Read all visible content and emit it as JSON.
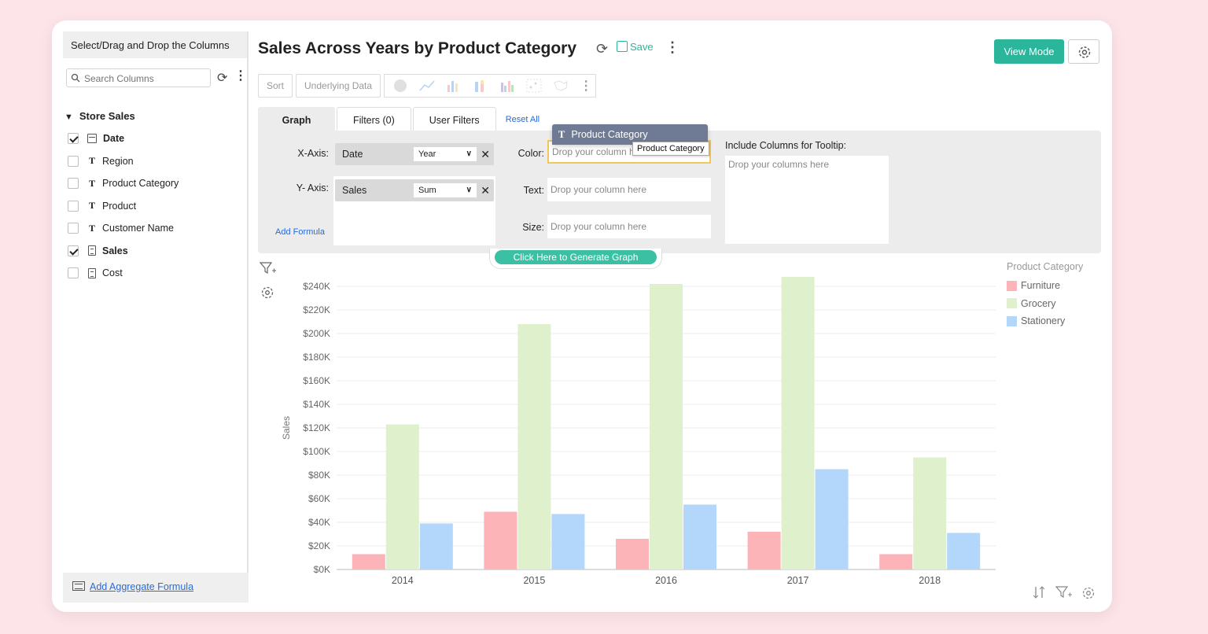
{
  "sidebar": {
    "header": "Select/Drag and Drop the Columns",
    "search_placeholder": "Search Columns",
    "tree_title": "Store Sales",
    "columns": [
      {
        "label": "Date",
        "checked": true,
        "type": "date"
      },
      {
        "label": "Region",
        "checked": false,
        "type": "text"
      },
      {
        "label": "Product Category",
        "checked": false,
        "type": "text"
      },
      {
        "label": "Product",
        "checked": false,
        "type": "text"
      },
      {
        "label": "Customer Name",
        "checked": false,
        "type": "text"
      },
      {
        "label": "Sales",
        "checked": true,
        "type": "number"
      },
      {
        "label": "Cost",
        "checked": false,
        "type": "number"
      }
    ],
    "footer_link": "Add Aggregate Formula"
  },
  "header": {
    "title": "Sales Across Years by Product Category",
    "save_label": "Save",
    "view_mode_label": "View Mode"
  },
  "toolbar": {
    "sort_label": "Sort",
    "underlying_label": "Underlying Data"
  },
  "tabs": [
    {
      "label": "Graph",
      "active": true
    },
    {
      "label": "Filters (0)",
      "active": false
    },
    {
      "label": "User Filters",
      "active": false
    }
  ],
  "reset_all": "Reset All",
  "config": {
    "x_axis_label": "X-Axis:",
    "x_axis_field": "Date",
    "x_axis_agg": "Year",
    "y_axis_label": "Y- Axis:",
    "y_axis_field": "Sales",
    "y_axis_agg": "Sum",
    "add_formula": "Add Formula",
    "color_label": "Color:",
    "color_placeholder": "Drop your column here",
    "text_label": "Text:",
    "text_placeholder": "Drop your column here",
    "size_label": "Size:",
    "size_placeholder": "Drop your column here",
    "tooltip_label": "Include Columns for Tooltip:",
    "tooltip_placeholder": "Drop your columns here",
    "drag_chip": "Product Category",
    "drag_tooltip": "Product Category",
    "generate_label": "Click Here to Generate Graph"
  },
  "chart_data": {
    "type": "bar",
    "title": "",
    "xlabel": "",
    "ylabel": "Sales",
    "ylim": [
      0,
      240000
    ],
    "y_ticks": [
      "$0K",
      "$20K",
      "$40K",
      "$60K",
      "$80K",
      "$100K",
      "$120K",
      "$140K",
      "$160K",
      "$180K",
      "$200K",
      "$220K",
      "$240K"
    ],
    "categories": [
      "2014",
      "2015",
      "2016",
      "2017",
      "2018"
    ],
    "legend_title": "Product Category",
    "legend_position": "top-right",
    "grid": true,
    "series": [
      {
        "name": "Furniture",
        "color": "#fdb4b8",
        "values": [
          13000,
          49000,
          26000,
          32000,
          13000
        ]
      },
      {
        "name": "Grocery",
        "color": "#dff0cc",
        "values": [
          123000,
          208000,
          242000,
          248000,
          95000
        ]
      },
      {
        "name": "Stationery",
        "color": "#b3d6fb",
        "values": [
          39000,
          47000,
          55000,
          85000,
          31000
        ]
      }
    ]
  }
}
